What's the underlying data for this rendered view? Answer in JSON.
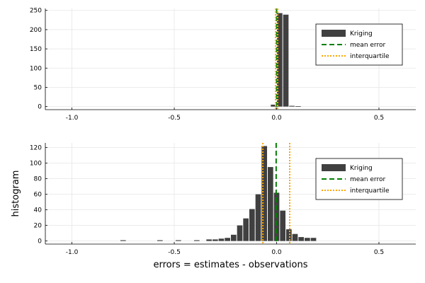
{
  "chart_data": [
    {
      "type": "bar",
      "xlim": [
        -1.13,
        0.68
      ],
      "ylim": [
        -8,
        255
      ],
      "xticks": [
        "-1.0",
        "-0.5",
        "0.0",
        "0.5"
      ],
      "yticks": [
        "0",
        "50",
        "100",
        "150",
        "200",
        "250"
      ],
      "xlabel": "",
      "ylabel": "",
      "grid": true,
      "legend_position": "top-right",
      "bin_width": 0.03,
      "bins": [
        {
          "x": -0.03,
          "y": 5
        },
        {
          "x": 0.0,
          "y": 243
        },
        {
          "x": 0.03,
          "y": 239
        },
        {
          "x": 0.06,
          "y": 2
        },
        {
          "x": 0.09,
          "y": 1
        }
      ],
      "mean_error": 0.0,
      "interquartile": [
        -0.005,
        0.005
      ],
      "series": [
        {
          "name": "Kriging",
          "kind": "bar",
          "color": "#404040"
        },
        {
          "name": "mean error",
          "kind": "line-dashed",
          "color": "#008000"
        },
        {
          "name": "interquartile",
          "kind": "line-dotted",
          "color": "#ffa500"
        }
      ]
    },
    {
      "type": "bar",
      "xlim": [
        -1.13,
        0.68
      ],
      "ylim": [
        -4,
        126
      ],
      "xticks": [
        "-1.0",
        "-0.5",
        "0.0",
        "0.5"
      ],
      "yticks": [
        "0",
        "20",
        "40",
        "60",
        "80",
        "100",
        "120"
      ],
      "xlabel": "errors = estimates - observations",
      "ylabel": "histogram",
      "grid": true,
      "legend_position": "top-right",
      "bin_width": 0.03,
      "bins": [
        {
          "x": -0.765,
          "y": 1
        },
        {
          "x": -0.585,
          "y": 1
        },
        {
          "x": -0.495,
          "y": 1
        },
        {
          "x": -0.405,
          "y": 1
        },
        {
          "x": -0.345,
          "y": 2
        },
        {
          "x": -0.315,
          "y": 2
        },
        {
          "x": -0.285,
          "y": 3
        },
        {
          "x": -0.255,
          "y": 4
        },
        {
          "x": -0.225,
          "y": 8
        },
        {
          "x": -0.195,
          "y": 20
        },
        {
          "x": -0.165,
          "y": 29
        },
        {
          "x": -0.135,
          "y": 41
        },
        {
          "x": -0.105,
          "y": 60
        },
        {
          "x": -0.075,
          "y": 122
        },
        {
          "x": -0.045,
          "y": 95
        },
        {
          "x": -0.015,
          "y": 62
        },
        {
          "x": 0.015,
          "y": 39
        },
        {
          "x": 0.045,
          "y": 15
        },
        {
          "x": 0.075,
          "y": 9
        },
        {
          "x": 0.105,
          "y": 5
        },
        {
          "x": 0.135,
          "y": 4
        },
        {
          "x": 0.165,
          "y": 4
        }
      ],
      "mean_error": -0.0023,
      "interquartile": [
        -0.067,
        0.064
      ],
      "series": [
        {
          "name": "Kriging",
          "kind": "bar",
          "color": "#404040"
        },
        {
          "name": "mean error",
          "kind": "line-dashed",
          "color": "#008000"
        },
        {
          "name": "interquartile",
          "kind": "line-dotted",
          "color": "#ffa500"
        }
      ]
    }
  ]
}
